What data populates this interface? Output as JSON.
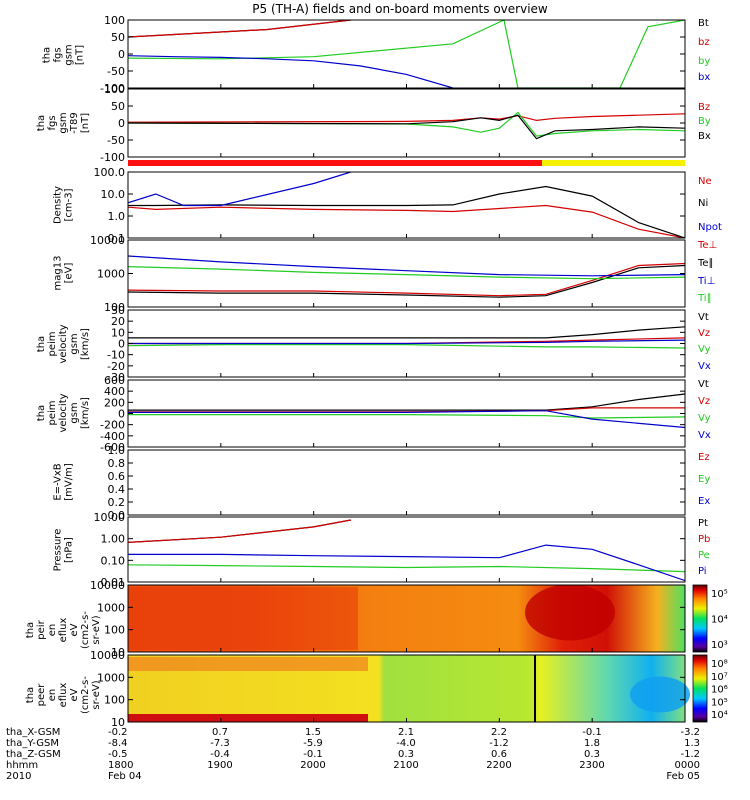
{
  "title": "P5 (TH-A) fields and on-board moments overview",
  "chart_data": [
    {
      "type": "line",
      "ylabel": [
        "tha",
        "fgs",
        "gsm",
        "[nT]"
      ],
      "ylim": [
        -100,
        100
      ],
      "yticks": [
        "100",
        "50",
        "0",
        "-50",
        "-100"
      ],
      "xlim": [
        0,
        6
      ],
      "series": [
        {
          "name": "Bt",
          "color": "#000000",
          "x": [
            0,
            1.5,
            2.4
          ],
          "y": [
            50,
            72,
            100
          ]
        },
        {
          "name": "bz",
          "color": "#d40000",
          "x": [
            0,
            1.5,
            2.4
          ],
          "y": [
            50,
            72,
            100
          ]
        },
        {
          "name": "by",
          "color": "#22cc22",
          "x": [
            0,
            1.0,
            2.0,
            3.5,
            4.05,
            4.2,
            4.5,
            5.3,
            5.6,
            6.0
          ],
          "y": [
            -12,
            -14,
            -8,
            30,
            100,
            -100,
            -100,
            -100,
            80,
            100
          ]
        },
        {
          "name": "bx",
          "color": "#0000cc",
          "x": [
            0,
            0.5,
            1.0,
            1.5,
            2.0,
            2.5,
            3.0,
            3.5
          ],
          "y": [
            -5,
            -8,
            -10,
            -14,
            -20,
            -35,
            -60,
            -100
          ]
        }
      ]
    },
    {
      "type": "line",
      "ylabel": [
        "tha",
        "fgs",
        "gsm",
        "-T89",
        "[nT]"
      ],
      "ylim": [
        -130,
        130
      ],
      "yticks": [
        "100",
        "50",
        "0",
        "-50",
        "-100"
      ],
      "xlim": [
        0,
        6
      ],
      "series": [
        {
          "name": "Bz",
          "color": "#d40000",
          "x": [
            0,
            3.0,
            3.5,
            3.8,
            4.0,
            4.2,
            4.4,
            4.6,
            5.0,
            5.5,
            6.0
          ],
          "y": [
            3,
            6,
            10,
            20,
            15,
            28,
            10,
            18,
            25,
            30,
            35
          ]
        },
        {
          "name": "By",
          "color": "#22cc22",
          "x": [
            0,
            3.0,
            3.5,
            3.8,
            4.0,
            4.2,
            4.4,
            4.6,
            5.0,
            5.5,
            6.0
          ],
          "y": [
            0,
            -4,
            -15,
            -35,
            -20,
            40,
            -50,
            -40,
            -30,
            -25,
            -30
          ]
        },
        {
          "name": "Bx",
          "color": "#000000",
          "x": [
            0,
            3.0,
            3.5,
            3.8,
            4.0,
            4.2,
            4.4,
            4.6,
            5.0,
            5.5,
            6.0
          ],
          "y": [
            0,
            -3,
            5,
            20,
            10,
            30,
            -60,
            -30,
            -25,
            -15,
            -20
          ]
        }
      ]
    },
    {
      "type": "line",
      "log": true,
      "ylabel": [
        "Density",
        "[cm-3]"
      ],
      "ylim": [
        0.1,
        100
      ],
      "yticks": [
        "100.0",
        "10.0",
        "1.0",
        "0.1"
      ],
      "xlim": [
        0,
        6
      ],
      "series": [
        {
          "name": "Ne",
          "color": "#d40000",
          "x": [
            0,
            0.3,
            1.0,
            2.0,
            3.0,
            3.5,
            4.0,
            4.5,
            5.0,
            5.5,
            6.0
          ],
          "y": [
            2.5,
            2.0,
            2.5,
            2.0,
            1.8,
            1.6,
            2.2,
            3.0,
            1.5,
            0.25,
            0.1
          ]
        },
        {
          "name": "Ni",
          "color": "#000000",
          "x": [
            0,
            0.3,
            1.0,
            2.0,
            3.0,
            3.5,
            4.0,
            4.5,
            5.0,
            5.5,
            6.0
          ],
          "y": [
            3.0,
            3.0,
            3.2,
            3.0,
            3.0,
            3.2,
            10,
            22,
            8,
            0.5,
            0.1
          ]
        },
        {
          "name": "Npot",
          "color": "#0000cc",
          "x": [
            0,
            0.3,
            0.6,
            1.0,
            2.0,
            2.4
          ],
          "y": [
            4,
            10,
            3,
            3,
            30,
            100
          ]
        }
      ]
    },
    {
      "type": "line",
      "log": true,
      "ylabel": [
        "mag13",
        "[eV]"
      ],
      "ylim": [
        30,
        10000
      ],
      "yticks": [
        "10000",
        "1000",
        "100"
      ],
      "xlim": [
        0,
        6
      ],
      "series": [
        {
          "name": "Te⊥",
          "color": "#d40000",
          "x": [
            0,
            1.0,
            2.0,
            3.0,
            4.0,
            4.5,
            5.0,
            5.5,
            6.0
          ],
          "y": [
            130,
            120,
            120,
            100,
            80,
            90,
            300,
            1100,
            1300
          ]
        },
        {
          "name": "Te∥",
          "color": "#000000",
          "x": [
            0,
            1.0,
            2.0,
            3.0,
            4.0,
            4.5,
            5.0,
            5.5,
            6.0
          ],
          "y": [
            110,
            100,
            100,
            85,
            70,
            80,
            250,
            900,
            1100
          ]
        },
        {
          "name": "Ti⊥",
          "color": "#0000cc",
          "x": [
            0,
            1.0,
            2.0,
            3.0,
            4.0,
            5.0,
            6.0
          ],
          "y": [
            2500,
            1500,
            1000,
            700,
            500,
            450,
            500
          ]
        },
        {
          "name": "Ti∥",
          "color": "#22cc22",
          "x": [
            0,
            1.0,
            2.0,
            3.0,
            4.0,
            5.0,
            6.0
          ],
          "y": [
            1000,
            800,
            600,
            500,
            400,
            350,
            400
          ]
        }
      ]
    },
    {
      "type": "line",
      "ylabel": [
        "tha",
        "peim",
        "velocity",
        "gsm",
        "[km/s]"
      ],
      "ylim": [
        -30,
        30
      ],
      "yticks": [
        "30",
        "20",
        "10",
        "0",
        "-10",
        "-20",
        "-30"
      ],
      "xlim": [
        0,
        6
      ],
      "series": [
        {
          "name": "Vt",
          "color": "#000000",
          "x": [
            0,
            1.0,
            3.0,
            4.5,
            5.0,
            5.5,
            6.0
          ],
          "y": [
            5,
            5,
            5,
            5,
            8,
            12,
            15
          ]
        },
        {
          "name": "Vz",
          "color": "#d40000",
          "x": [
            0,
            1.0,
            3.0,
            4.5,
            5.0,
            6.0
          ],
          "y": [
            0,
            0,
            0,
            2,
            3,
            5
          ]
        },
        {
          "name": "Vy",
          "color": "#22cc22",
          "x": [
            0,
            1.0,
            3.0,
            4.5,
            5.0,
            6.0
          ],
          "y": [
            -2,
            -1,
            -1,
            -3,
            -3,
            -4
          ]
        },
        {
          "name": "Vx",
          "color": "#0000cc",
          "x": [
            0,
            1.0,
            3.0,
            4.5,
            5.0,
            6.0
          ],
          "y": [
            0,
            0,
            0,
            1,
            2,
            3
          ]
        }
      ]
    },
    {
      "type": "line",
      "ylabel": [
        "tha",
        "peim",
        "velocity",
        "gsm",
        "[km/s]"
      ],
      "ylim": [
        -600,
        600
      ],
      "yticks": [
        "600",
        "400",
        "200",
        "0",
        "-200",
        "-400",
        "-600"
      ],
      "xlim": [
        0,
        6
      ],
      "series": [
        {
          "name": "Vt",
          "color": "#000000",
          "x": [
            0,
            1.0,
            3.0,
            4.5,
            5.0,
            5.5,
            6.0
          ],
          "y": [
            60,
            60,
            60,
            60,
            120,
            250,
            350
          ]
        },
        {
          "name": "Vz",
          "color": "#d40000",
          "x": [
            0,
            1.0,
            3.0,
            4.5,
            5.0,
            6.0
          ],
          "y": [
            30,
            30,
            30,
            50,
            100,
            100
          ]
        },
        {
          "name": "Vy",
          "color": "#22cc22",
          "x": [
            0,
            1.0,
            3.0,
            4.5,
            5.0,
            6.0
          ],
          "y": [
            -20,
            -20,
            -20,
            -40,
            -80,
            -60
          ]
        },
        {
          "name": "Vx",
          "color": "#0000cc",
          "x": [
            0,
            1.0,
            3.0,
            4.5,
            5.0,
            6.0
          ],
          "y": [
            20,
            20,
            20,
            50,
            -100,
            -250
          ]
        }
      ]
    },
    {
      "type": "line",
      "ylabel": [
        "E=-VxB",
        "[mV/m]"
      ],
      "ylim": [
        0,
        1
      ],
      "yticks": [
        "1.0",
        "0.8",
        "0.6",
        "0.4",
        "0.2",
        "0.0"
      ],
      "xlim": [
        0,
        6
      ],
      "series": [
        {
          "name": "Ez",
          "color": "#d40000",
          "x": [],
          "y": []
        },
        {
          "name": "Ey",
          "color": "#22cc22",
          "x": [],
          "y": []
        },
        {
          "name": "Ex",
          "color": "#0000cc",
          "x": [],
          "y": []
        }
      ]
    },
    {
      "type": "line",
      "log": true,
      "ylabel": [
        "Pressure",
        "[nPa]"
      ],
      "ylim": [
        0.005,
        30
      ],
      "yticks": [
        "10.00",
        "1.00",
        "0.10",
        "0.01"
      ],
      "xlim": [
        0,
        6
      ],
      "series": [
        {
          "name": "Pt",
          "color": "#000000",
          "x": [
            0,
            1.0,
            2.0,
            2.4
          ],
          "y": [
            1.0,
            2.0,
            8.0,
            20
          ]
        },
        {
          "name": "Pb",
          "color": "#d40000",
          "x": [
            0,
            1.0,
            2.0,
            2.4
          ],
          "y": [
            1.0,
            2.0,
            8.0,
            20
          ]
        },
        {
          "name": "Pe",
          "color": "#22cc22",
          "x": [
            0,
            1.0,
            2.0,
            3.0,
            4.0,
            5.0,
            6.0
          ],
          "y": [
            0.05,
            0.045,
            0.04,
            0.035,
            0.04,
            0.03,
            0.02
          ]
        },
        {
          "name": "Pi",
          "color": "#0000cc",
          "x": [
            0,
            1.0,
            2.0,
            3.0,
            4.0,
            4.5,
            5.0,
            5.5,
            6.0
          ],
          "y": [
            0.2,
            0.2,
            0.17,
            0.15,
            0.13,
            0.7,
            0.4,
            0.05,
            0.006
          ]
        }
      ]
    },
    {
      "type": "heatmap",
      "ylabel": [
        "tha",
        "peir",
        "en",
        "eflux",
        "eV",
        "(cm2-s-",
        "sr-eV)"
      ],
      "ylim": [
        10,
        20000
      ],
      "yticks": [
        "10000",
        "1000",
        "100",
        "10"
      ],
      "colorbar": {
        "ticks": [
          "10⁵",
          "10⁴",
          "10³"
        ]
      },
      "xlim": [
        0,
        6
      ]
    },
    {
      "type": "heatmap",
      "ylabel": [
        "tha",
        "peer",
        "en",
        "eflux",
        "eV",
        "(cm2-s-",
        "sr-eV)"
      ],
      "ylim": [
        7,
        20000
      ],
      "yticks": [
        "10000",
        "1000",
        "100",
        "10"
      ],
      "colorbar": {
        "ticks": [
          "10⁸",
          "10⁷",
          "10⁶",
          "10⁵",
          "10⁴"
        ]
      },
      "xlim": [
        0,
        6
      ]
    }
  ],
  "orbit_rows": [
    {
      "label": "tha_X-GSM",
      "values": [
        "-0.2",
        "0.7",
        "1.5",
        "2.1",
        "2.2",
        "-0.1",
        "-3.2"
      ]
    },
    {
      "label": "tha_Y-GSM",
      "values": [
        "-8.4",
        "-7.3",
        "-5.9",
        "-4.0",
        "-1.2",
        "1.8",
        "1.3"
      ]
    },
    {
      "label": "tha_Z-GSM",
      "values": [
        "-0.5",
        "-0.4",
        "-0.1",
        "0.3",
        "0.6",
        "0.3",
        "-1.2"
      ]
    },
    {
      "label": "hhmm",
      "values": [
        "1800",
        "1900",
        "2000",
        "2100",
        "2200",
        "2300",
        "0000"
      ]
    },
    {
      "label": "2010",
      "values": [
        "Feb 04",
        "",
        "",
        "",
        "",
        "",
        "Feb 05"
      ]
    }
  ]
}
